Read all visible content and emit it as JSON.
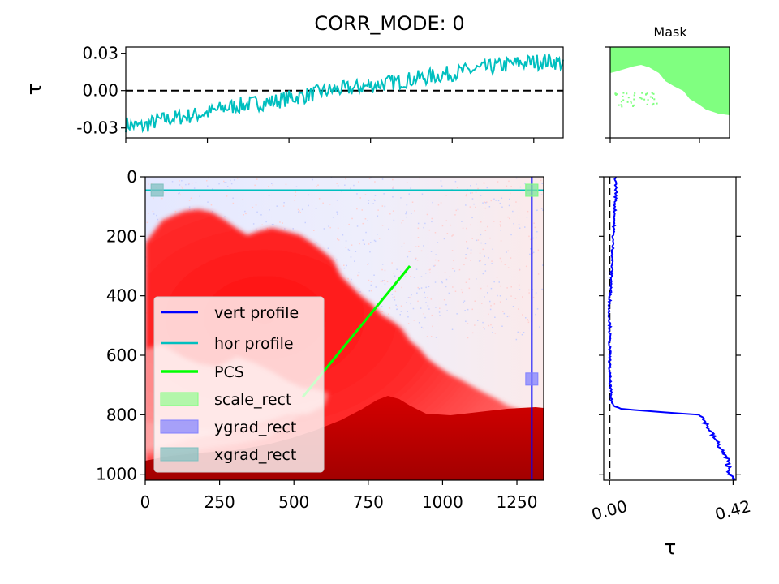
{
  "figure_title": "CORR_MODE: 0",
  "colors": {
    "hor_profile": "#00bfbf",
    "vert_profile": "#0000ff",
    "pcs": "#00ff00",
    "scale_rect": "#80ff80",
    "ygrad_rect": "#8080ff",
    "xgrad_rect": "#80c0c0",
    "mask_fill": "#80ff80",
    "plume_red": "#ff0000",
    "background_tint": "#e8ecff"
  },
  "chart_data": [
    {
      "id": "hor-profile",
      "type": "line",
      "title": "",
      "xlabel": "",
      "ylabel": "τ",
      "xlim": [
        0,
        1340
      ],
      "ylim": [
        -0.038,
        0.035
      ],
      "yticks": [
        "0.03",
        "0.00",
        "-0.03"
      ],
      "ytick_values": [
        0.03,
        0.0,
        -0.03
      ],
      "xtick_values": [
        0,
        250,
        500,
        750,
        1000,
        1250
      ],
      "reference_line": 0.0,
      "series": [
        {
          "x": [
            0,
            50,
            100,
            150,
            200,
            250,
            300,
            350,
            400,
            450,
            500,
            550,
            600,
            650,
            700,
            750,
            800,
            850,
            900,
            950,
            1000,
            1050,
            1100,
            1150,
            1200,
            1250,
            1300,
            1340
          ],
          "values": [
            -0.027,
            -0.029,
            -0.024,
            -0.022,
            -0.02,
            -0.018,
            -0.014,
            -0.012,
            -0.01,
            -0.009,
            -0.006,
            -0.004,
            -0.001,
            0.001,
            0.002,
            0.004,
            0.006,
            0.008,
            0.01,
            0.012,
            0.014,
            0.016,
            0.018,
            0.02,
            0.022,
            0.023,
            0.024,
            0.022
          ]
        }
      ]
    },
    {
      "id": "mask",
      "type": "heatmap",
      "title": "Mask"
    },
    {
      "id": "image",
      "type": "heatmap",
      "title": "",
      "xlim": [
        0,
        1340
      ],
      "ylim": [
        1020,
        0
      ],
      "xticks": [
        "0",
        "250",
        "500",
        "750",
        "1000",
        "1250"
      ],
      "xtick_values": [
        0,
        250,
        500,
        750,
        1000,
        1250
      ],
      "yticks": [
        "0",
        "200",
        "400",
        "600",
        "800",
        "1000"
      ],
      "ytick_values": [
        0,
        200,
        400,
        600,
        800,
        1000
      ],
      "overlays": {
        "hor_profile_y": 45,
        "vert_profile_x": 1300,
        "pcs_line": [
          [
            530,
            740
          ],
          [
            890,
            300
          ]
        ],
        "xgrad_rects": [
          [
            40,
            45
          ],
          [
            1300,
            45
          ]
        ],
        "scale_rect": [
          1300,
          45
        ],
        "ygrad_rect": [
          1300,
          680
        ]
      },
      "legend": {
        "placement": "lower-left",
        "entries": [
          "vert profile",
          "hor profile",
          "PCS",
          "scale_rect",
          "ygrad_rect",
          "xgrad_rect"
        ]
      }
    },
    {
      "id": "vert-profile",
      "type": "line",
      "title": "",
      "xlabel": "τ",
      "ylabel": "",
      "xlim": [
        -0.02,
        0.43
      ],
      "ylim": [
        1020,
        0
      ],
      "xticks": [
        "0.00",
        "0.42"
      ],
      "xtick_values": [
        0.0,
        0.42
      ],
      "reference_line": 0.0,
      "series": [
        {
          "y": [
            0,
            50,
            100,
            150,
            200,
            250,
            300,
            350,
            400,
            450,
            500,
            550,
            600,
            650,
            700,
            750,
            770,
            780,
            790,
            800,
            850,
            900,
            950,
            1000,
            1020
          ],
          "values": [
            0.02,
            0.022,
            0.018,
            0.016,
            0.012,
            0.01,
            0.008,
            0.006,
            0.002,
            -0.002,
            0.001,
            0.0,
            0.001,
            0.0,
            0.002,
            0.006,
            0.012,
            0.04,
            0.16,
            0.31,
            0.34,
            0.37,
            0.4,
            0.41,
            0.42
          ]
        }
      ]
    }
  ]
}
